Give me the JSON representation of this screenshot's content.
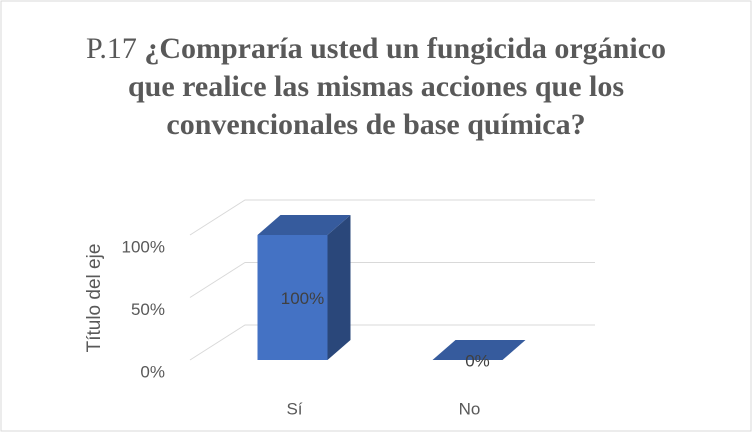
{
  "chart_data": {
    "type": "bar3d",
    "title_prefix": "P.17",
    "title": "¿Compraría usted un fungicida orgánico que realice las mismas acciones que los convencionales de base química?",
    "y_label": "Título del eje",
    "categories": [
      "Sí",
      "No"
    ],
    "values": [
      100,
      0
    ],
    "value_labels": [
      "100%",
      "0%"
    ],
    "color": "#4472c4",
    "ylim": [
      0,
      100
    ],
    "yticks": [
      {
        "value": 0,
        "label": "0%"
      },
      {
        "value": 50,
        "label": "50%"
      },
      {
        "value": 100,
        "label": "100%"
      }
    ],
    "grid": true
  }
}
